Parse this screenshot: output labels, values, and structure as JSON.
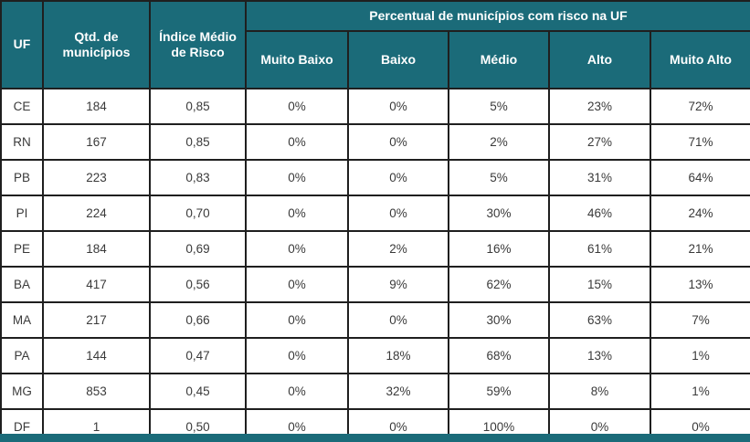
{
  "colors": {
    "header_bg": "#1b6b79",
    "header_text": "#ffffff",
    "cell_text": "#3a3a3a",
    "border": "#1f1f1f",
    "bottom_bar": "#1b6b79"
  },
  "chart_data": {
    "type": "table",
    "title": "",
    "group_header": {
      "label": "Percentual de municípios com risco na UF",
      "spans_columns": [
        "Muito Baixo",
        "Baixo",
        "Médio",
        "Alto",
        "Muito Alto"
      ]
    },
    "columns": [
      "UF",
      "Qtd. de municípios",
      "Índice Médio de Risco",
      "Muito Baixo",
      "Baixo",
      "Médio",
      "Alto",
      "Muito Alto"
    ],
    "rows": [
      [
        "CE",
        "184",
        "0,85",
        "0%",
        "0%",
        "5%",
        "23%",
        "72%"
      ],
      [
        "RN",
        "167",
        "0,85",
        "0%",
        "0%",
        "2%",
        "27%",
        "71%"
      ],
      [
        "PB",
        "223",
        "0,83",
        "0%",
        "0%",
        "5%",
        "31%",
        "64%"
      ],
      [
        "PI",
        "224",
        "0,70",
        "0%",
        "0%",
        "30%",
        "46%",
        "24%"
      ],
      [
        "PE",
        "184",
        "0,69",
        "0%",
        "2%",
        "16%",
        "61%",
        "21%"
      ],
      [
        "BA",
        "417",
        "0,56",
        "0%",
        "9%",
        "62%",
        "15%",
        "13%"
      ],
      [
        "MA",
        "217",
        "0,66",
        "0%",
        "0%",
        "30%",
        "63%",
        "7%"
      ],
      [
        "PA",
        "144",
        "0,47",
        "0%",
        "18%",
        "68%",
        "13%",
        "1%"
      ],
      [
        "MG",
        "853",
        "0,45",
        "0%",
        "32%",
        "59%",
        "8%",
        "1%"
      ],
      [
        "DF",
        "1",
        "0,50",
        "0%",
        "0%",
        "100%",
        "0%",
        "0%"
      ]
    ]
  }
}
